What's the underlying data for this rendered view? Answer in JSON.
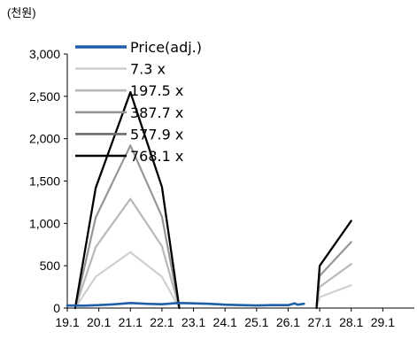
{
  "chart_data": {
    "type": "line",
    "unit_label": "(천원)",
    "ylim": [
      0,
      3000
    ],
    "yticks": [
      0,
      500,
      1000,
      1500,
      2000,
      2500,
      3000
    ],
    "ytick_labels": [
      "0",
      "500",
      "1,000",
      "1,500",
      "2,000",
      "2,500",
      "3,000"
    ],
    "xlim": [
      19.1,
      30.1
    ],
    "xticks": [
      19.1,
      20.1,
      21.1,
      22.1,
      23.1,
      24.1,
      25.1,
      26.1,
      27.1,
      28.1,
      29.1
    ],
    "xtick_labels": [
      "19.1",
      "20.1",
      "21.1",
      "22.1",
      "23.1",
      "24.1",
      "25.1",
      "26.1",
      "27.1",
      "28.1",
      "29.1"
    ],
    "grid": false,
    "legend_position": "top-left",
    "series": [
      {
        "name": "Price(adj.)",
        "color": "#1f5fa8",
        "width": 2.6,
        "x": [
          19.1,
          19.6,
          20.1,
          20.6,
          21.1,
          21.6,
          22.1,
          22.6,
          23.1,
          23.6,
          24.1,
          24.6,
          25.1,
          25.6,
          26.1,
          26.3,
          26.4,
          26.6
        ],
        "y": [
          30,
          28,
          35,
          45,
          60,
          50,
          45,
          60,
          55,
          50,
          40,
          35,
          30,
          35,
          35,
          55,
          40,
          50
        ]
      },
      {
        "name": "7.3 x",
        "color": "#d0d0d0",
        "width": 2.2,
        "segments": [
          {
            "x": [
              19.35,
              20.0,
              21.1,
              22.1,
              22.65
            ],
            "y": [
              0,
              370,
              660,
              370,
              0
            ]
          },
          {
            "x": [
              27.0,
              27.1,
              28.1
            ],
            "y": [
              0,
              130,
              270
            ]
          }
        ]
      },
      {
        "name": "197.5 x",
        "color": "#b8b8b8",
        "width": 2.2,
        "segments": [
          {
            "x": [
              19.35,
              20.0,
              21.1,
              22.1,
              22.65
            ],
            "y": [
              0,
              720,
              1290,
              730,
              0
            ]
          },
          {
            "x": [
              27.0,
              27.1,
              28.1
            ],
            "y": [
              0,
              250,
              520
            ]
          }
        ]
      },
      {
        "name": "387.7 x",
        "color": "#969696",
        "width": 2.2,
        "segments": [
          {
            "x": [
              19.35,
              20.0,
              21.1,
              22.1,
              22.65
            ],
            "y": [
              0,
              1070,
              1920,
              1080,
              0
            ]
          },
          {
            "x": [
              27.0,
              27.1,
              28.1
            ],
            "y": [
              0,
              380,
              780
            ]
          }
        ]
      },
      {
        "name": "577.9 x",
        "color": "#6c6c6c",
        "width": 2.2,
        "segments": [
          {
            "x": [
              19.35,
              20.0,
              21.1,
              22.1,
              22.65
            ],
            "y": [
              0,
              1420,
              2550,
              1430,
              0
            ]
          },
          {
            "x": [
              27.0,
              27.1,
              28.1
            ],
            "y": [
              0,
              500,
              1030
            ]
          }
        ]
      },
      {
        "name": "768.1 x",
        "color": "#000000",
        "width": 2.2,
        "segments": [
          {
            "x": [
              19.35,
              20.0,
              21.1,
              22.1,
              22.65
            ],
            "y": [
              0,
              1420,
              2550,
              1430,
              0
            ]
          },
          {
            "x": [
              27.0,
              27.1,
              28.1
            ],
            "y": [
              0,
              500,
              1030
            ]
          }
        ]
      }
    ]
  }
}
